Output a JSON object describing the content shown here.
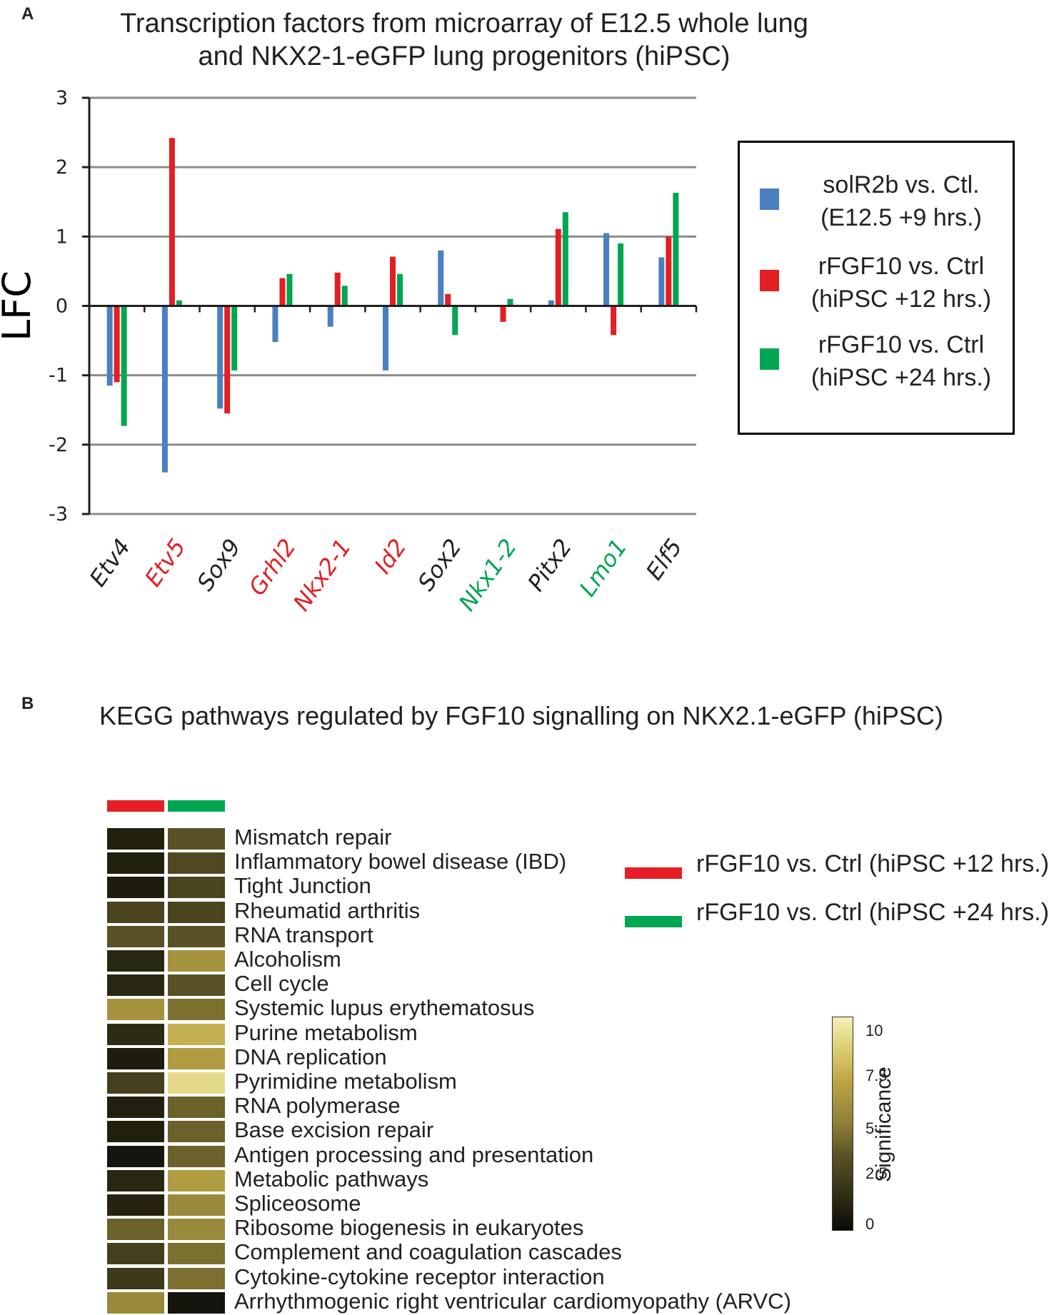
{
  "panel_a": {
    "letter": "A",
    "title_line1": "Transcription factors from microarray of E12.5 whole lung",
    "title_line2": "and NKX2-1-eGFP lung progenitors (hiPSC)"
  },
  "panel_b": {
    "letter": "B",
    "title": "KEGG pathways regulated by FGF10 signalling on NKX2.1-eGFP (hiPSC)"
  },
  "chart_data": [
    {
      "type": "bar",
      "title": "Transcription factors from microarray of E12.5 whole lung and NKX2-1-eGFP lung progenitors (hiPSC)",
      "ylabel": "LFC",
      "xlabel": "",
      "ylim": [
        -3,
        3
      ],
      "yticks": [
        3,
        2,
        1,
        0,
        -1,
        -2,
        -3
      ],
      "grid": true,
      "legend_position": "right",
      "categories": [
        "Etv4",
        "Etv5",
        "Sox9",
        "Grhl2",
        "Nkx2-1",
        "Id2",
        "Sox2",
        "Nkx1-2",
        "Pitx2",
        "Lmo1",
        "Elf5"
      ],
      "category_colors": [
        "#231f20",
        "#e31e24",
        "#231f20",
        "#e31e24",
        "#e31e24",
        "#e31e24",
        "#231f20",
        "#00a651",
        "#231f20",
        "#00a651",
        "#231f20"
      ],
      "series": [
        {
          "name": "solR2b vs. Ctl. (E12.5 +9 hrs.)",
          "label_line1": "solR2b vs. Ctl.",
          "label_line2": "(E12.5 +9 hrs.)",
          "color": "#4a7fc1",
          "values": [
            -1.15,
            -2.4,
            -1.48,
            -0.52,
            -0.3,
            -0.93,
            0.8,
            null,
            0.08,
            1.05,
            0.7
          ]
        },
        {
          "name": "rFGF10 vs. Ctrl (hiPSC +12 hrs.)",
          "label_line1": "rFGF10 vs. Ctrl",
          "label_line2": "(hiPSC +12 hrs.)",
          "color": "#e31e24",
          "values": [
            -1.1,
            2.42,
            -1.55,
            0.4,
            0.48,
            0.71,
            0.17,
            -0.23,
            1.11,
            -0.42,
            1.0
          ]
        },
        {
          "name": "rFGF10 vs. Ctrl (hiPSC +24 hrs.)",
          "label_line1": "rFGF10 vs. Ctrl",
          "label_line2": "(hiPSC +24 hrs.)",
          "color": "#00a651",
          "values": [
            -1.73,
            0.08,
            -0.93,
            0.46,
            0.29,
            0.46,
            -0.42,
            0.1,
            1.35,
            0.9,
            1.63
          ]
        }
      ]
    },
    {
      "type": "heatmap",
      "title": "KEGG pathways regulated by FGF10 signalling on NKX2.1-eGFP (hiPSC)",
      "columns": [
        "rFGF10 vs. Ctrl (hiPSC +12 hrs.)",
        "rFGF10 vs. Ctrl (hiPSC +24 hrs.)"
      ],
      "column_colors": [
        "#e31e24",
        "#00a651"
      ],
      "rows": [
        "Mismatch repair",
        "Inflammatory bowel disease (IBD)",
        "Tight Junction",
        "Rheumatid arthritis",
        "RNA transport",
        "Alcoholism",
        "Cell cycle",
        "Systemic lupus erythematosus",
        "Purine metabolism",
        "DNA replication",
        "Pyrimidine metabolism",
        "RNA polymerase",
        "Base excision repair",
        "Antigen processing and presentation",
        "Metabolic pathways",
        "Spliceosome",
        "Ribosome biogenesis in eukaryotes",
        "Complement and coagulation cascades",
        "Cytokine-cytokine receptor interaction",
        "Arrhythmogenic right ventricular cardiomyopathy (ARVC)"
      ],
      "values": [
        [
          1.0,
          3.5
        ],
        [
          1.0,
          3.0
        ],
        [
          0.8,
          2.8
        ],
        [
          2.8,
          2.8
        ],
        [
          3.5,
          3.5
        ],
        [
          1.3,
          6.0
        ],
        [
          1.3,
          3.5
        ],
        [
          6.0,
          4.5
        ],
        [
          1.5,
          7.5
        ],
        [
          0.8,
          6.5
        ],
        [
          2.5,
          9.5
        ],
        [
          1.0,
          4.0
        ],
        [
          1.0,
          4.0
        ],
        [
          0.5,
          4.0
        ],
        [
          1.3,
          6.5
        ],
        [
          1.2,
          5.5
        ],
        [
          4.0,
          5.5
        ],
        [
          2.5,
          4.5
        ],
        [
          2.2,
          4.5
        ],
        [
          5.5,
          0.5
        ]
      ],
      "colorbar": {
        "label": "Significance",
        "min": 0,
        "max": 10.5,
        "ticks": [
          "10",
          "7.5",
          "5",
          "2.5",
          "0"
        ]
      }
    }
  ]
}
